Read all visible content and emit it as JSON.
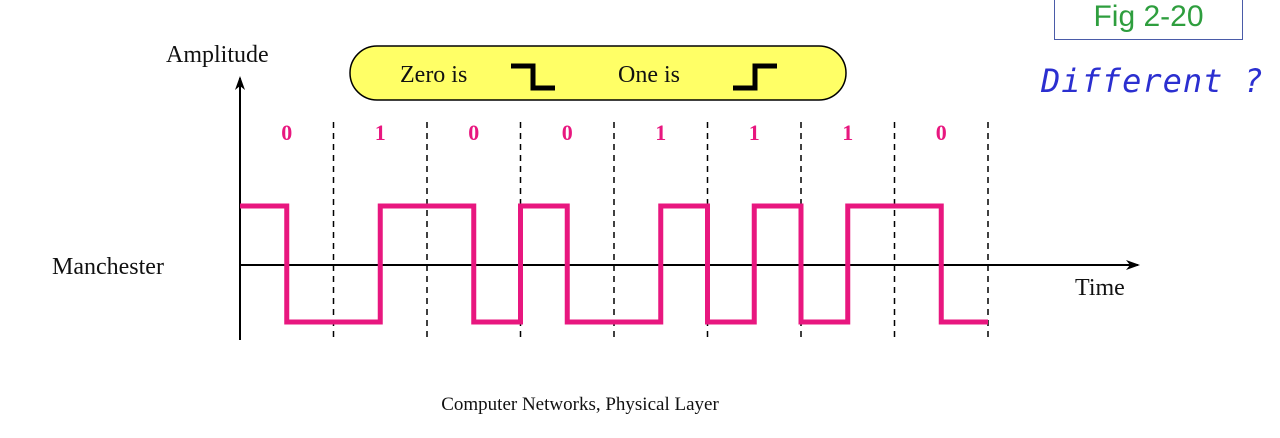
{
  "figure_label": "Fig 2-20",
  "question": "Different ?",
  "footer": "Computer Networks, Physical Layer",
  "diagram": {
    "y_label": "Amplitude",
    "x_label": "Time",
    "signal_label": "Manchester",
    "legend": {
      "zero_text": "Zero is",
      "one_text": "One is"
    },
    "bits": [
      "0",
      "1",
      "0",
      "0",
      "1",
      "1",
      "1",
      "0"
    ],
    "colors": {
      "signal": "#e8177f",
      "bit_text": "#e8177f",
      "legend_fill": "#ffff66"
    }
  }
}
